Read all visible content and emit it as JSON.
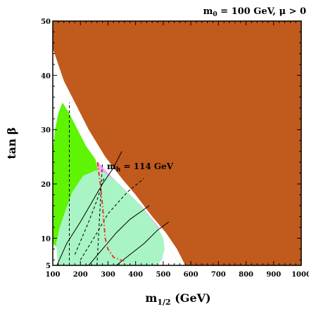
{
  "chart_data": {
    "type": "area",
    "title": {
      "text": "m",
      "sub": "0",
      "rest": " = 100 GeV,  μ > 0"
    },
    "xlabel": {
      "text": "m",
      "sub": "1/2",
      "rest": " (GeV)"
    },
    "ylabel": "tan β",
    "xlim": [
      100,
      1000
    ],
    "ylim": [
      5,
      50
    ],
    "xticks": [
      100,
      200,
      300,
      400,
      500,
      600,
      700,
      800,
      900,
      1000
    ],
    "yticks": [
      5,
      10,
      20,
      30,
      40,
      50
    ],
    "annotation": {
      "text": "m",
      "sub": "h",
      "rest": " = 114 GeV",
      "at": [
        282,
        23
      ]
    },
    "colors": {
      "excluded_brown": "#c15a1d",
      "bsgamma_green": "#5ef404",
      "g2_pink": "#f9a3f4",
      "cosmology_turquoise": "#a8f4c4",
      "higgs_red": "#e23a28",
      "chargino_black": "#000000"
    },
    "regions": [
      {
        "name": "brown",
        "polygon": [
          [
            100,
            45
          ],
          [
            160,
            36
          ],
          [
            210,
            31
          ],
          [
            260,
            25.5
          ],
          [
            320,
            20
          ],
          [
            400,
            15.5
          ],
          [
            460,
            12
          ],
          [
            520,
            8.5
          ],
          [
            560,
            5
          ],
          [
            1000,
            5
          ],
          [
            1000,
            50
          ],
          [
            100,
            50
          ]
        ]
      },
      {
        "name": "white-band",
        "polygon": [
          [
            100,
            45
          ],
          [
            110,
            42
          ],
          [
            130,
            38
          ],
          [
            160,
            33
          ],
          [
            210,
            28
          ],
          [
            260,
            24
          ],
          [
            320,
            20
          ],
          [
            400,
            15.5
          ],
          [
            460,
            12
          ],
          [
            520,
            8.5
          ],
          [
            560,
            5
          ],
          [
            580,
            5
          ],
          [
            550,
            8
          ],
          [
            510,
            11
          ],
          [
            460,
            14
          ],
          [
            400,
            18
          ],
          [
            350,
            21
          ],
          [
            290,
            25
          ],
          [
            230,
            30
          ],
          [
            180,
            35
          ],
          [
            140,
            39
          ],
          [
            110,
            43
          ],
          [
            100,
            45
          ]
        ]
      },
      {
        "name": "green",
        "polygon": [
          [
            100,
            26
          ],
          [
            108,
            30
          ],
          [
            120,
            33
          ],
          [
            135,
            35
          ],
          [
            160,
            33
          ],
          [
            190,
            30
          ],
          [
            220,
            27
          ],
          [
            255,
            24.5
          ],
          [
            265,
            22
          ],
          [
            200,
            16
          ],
          [
            155,
            11
          ],
          [
            125,
            8
          ],
          [
            100,
            9
          ]
        ]
      },
      {
        "name": "pink",
        "polygon": [
          [
            265,
            24
          ],
          [
            300,
            22
          ],
          [
            340,
            20
          ],
          [
            380,
            18
          ],
          [
            420,
            16
          ],
          [
            460,
            13.5
          ],
          [
            485,
            12
          ],
          [
            470,
            11
          ],
          [
            440,
            13
          ],
          [
            400,
            15
          ],
          [
            360,
            17
          ],
          [
            320,
            19
          ],
          [
            285,
            21
          ],
          [
            260,
            23
          ],
          [
            265,
            24
          ]
        ]
      },
      {
        "name": "turquoise",
        "polygon": [
          [
            118,
            5
          ],
          [
            112,
            9
          ],
          [
            125,
            12
          ],
          [
            145,
            15
          ],
          [
            170,
            18.5
          ],
          [
            210,
            21.5
          ],
          [
            255,
            22.5
          ],
          [
            290,
            22
          ],
          [
            330,
            20.5
          ],
          [
            370,
            18.5
          ],
          [
            410,
            16.5
          ],
          [
            450,
            14
          ],
          [
            480,
            12
          ],
          [
            500,
            10
          ],
          [
            505,
            8
          ],
          [
            495,
            6
          ],
          [
            475,
            5
          ]
        ]
      }
    ],
    "series": [
      {
        "type": "dashed-black",
        "points": [
          [
            160,
            5
          ],
          [
            160,
            35
          ]
        ]
      },
      {
        "type": "dashed-black",
        "points": [
          [
            260,
            5
          ],
          [
            280,
            24
          ]
        ]
      },
      {
        "type": "dashed-black",
        "points": [
          [
            180,
            7
          ],
          [
            230,
            13
          ],
          [
            260,
            17
          ],
          [
            285,
            21
          ]
        ]
      },
      {
        "type": "dashed-black",
        "points": [
          [
            200,
            6
          ],
          [
            260,
            11
          ],
          [
            300,
            14.5
          ],
          [
            370,
            18.5
          ],
          [
            430,
            21
          ]
        ]
      },
      {
        "type": "solid-black",
        "points": [
          [
            115,
            5
          ],
          [
            150,
            9
          ],
          [
            200,
            13
          ],
          [
            240,
            16.5
          ],
          [
            280,
            20
          ],
          [
            320,
            23
          ],
          [
            350,
            26
          ]
        ]
      },
      {
        "type": "solid-black",
        "points": [
          [
            230,
            5
          ],
          [
            280,
            8
          ],
          [
            330,
            11
          ],
          [
            380,
            13.5
          ],
          [
            450,
            16
          ]
        ]
      },
      {
        "type": "solid-black",
        "points": [
          [
            330,
            5
          ],
          [
            380,
            7
          ],
          [
            430,
            9
          ],
          [
            480,
            11.5
          ],
          [
            520,
            13
          ]
        ]
      },
      {
        "type": "dashdot-red",
        "points": [
          [
            262,
            24
          ],
          [
            272,
            20
          ],
          [
            280,
            16
          ],
          [
            285,
            13
          ],
          [
            290,
            10
          ],
          [
            300,
            8
          ],
          [
            320,
            6.5
          ],
          [
            345,
            6
          ],
          [
            360,
            5.8
          ]
        ]
      }
    ]
  }
}
